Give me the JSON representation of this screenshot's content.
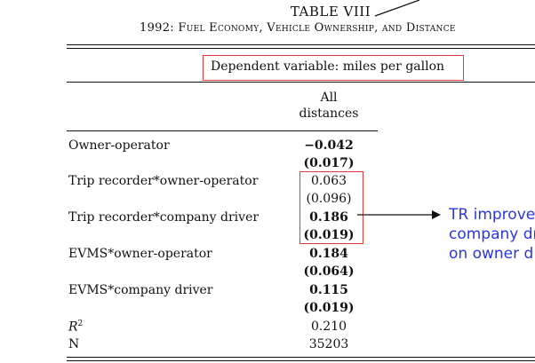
{
  "table": {
    "number": "TABLE VIII",
    "title": "1992: Fuel Economy, Vehicle Ownership, and Distance",
    "dependent_variable": "Dependent variable: miles per gallon",
    "column_header_line1": "All",
    "column_header_line2": "distances",
    "rows": [
      {
        "label": "Owner-operator",
        "coef": "−0.042",
        "se": "(0.017)",
        "bold": true
      },
      {
        "label": "Trip recorder*owner-operator",
        "coef": "0.063",
        "se": "(0.096)",
        "bold": false
      },
      {
        "label": "Trip recorder*company driver",
        "coef": "0.186",
        "se": "(0.019)",
        "bold": true
      },
      {
        "label": "EVMS*owner-operator",
        "coef": "0.184",
        "se": "(0.064)",
        "bold": true
      },
      {
        "label": "EVMS*company driver",
        "coef": "0.115",
        "se": "(0.019)",
        "bold": true
      }
    ],
    "r2_label": "R",
    "r2_sup": "2",
    "r2_value": "0.210",
    "n_label": "N",
    "n_value": "35203"
  },
  "annotation": {
    "line1": "TR improve",
    "line2": "company dr",
    "line3": "on owner d"
  },
  "colors": {
    "highlight_box": "#e23b3b",
    "annotation_text": "#2a36e6"
  }
}
